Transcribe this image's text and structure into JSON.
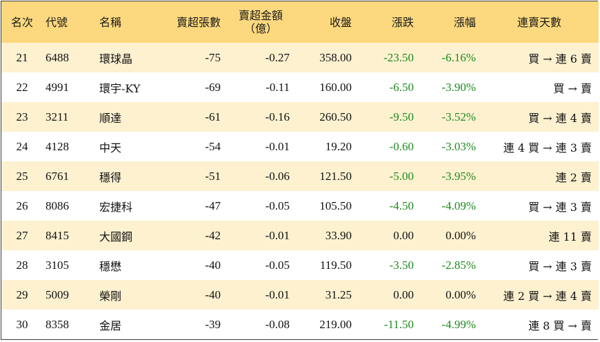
{
  "headers": {
    "rank": "名次",
    "code": "代號",
    "name": "名稱",
    "net_sell_lots": "賣超張數",
    "net_sell_amount_line1": "賣超金額",
    "net_sell_amount_line2": "（億）",
    "close": "收盤",
    "change": "漲跌",
    "change_pct": "漲幅",
    "streak": "連賣天數"
  },
  "rows": [
    {
      "rank": "21",
      "code": "6488",
      "name": "環球晶",
      "lots": "-75",
      "amount": "-0.27",
      "close": "358.00",
      "change": "-23.50",
      "pct": "-6.16%",
      "streak": "買 → 連 6 賣",
      "dir": "neg"
    },
    {
      "rank": "22",
      "code": "4991",
      "name": "環宇-KY",
      "lots": "-69",
      "amount": "-0.11",
      "close": "160.00",
      "change": "-6.50",
      "pct": "-3.90%",
      "streak": "買 → 賣",
      "dir": "neg"
    },
    {
      "rank": "23",
      "code": "3211",
      "name": "順達",
      "lots": "-61",
      "amount": "-0.16",
      "close": "260.50",
      "change": "-9.50",
      "pct": "-3.52%",
      "streak": "買 → 連 4 賣",
      "dir": "neg"
    },
    {
      "rank": "24",
      "code": "4128",
      "name": "中天",
      "lots": "-54",
      "amount": "-0.01",
      "close": "19.20",
      "change": "-0.60",
      "pct": "-3.03%",
      "streak": "連 4 買 → 連 3 賣",
      "dir": "neg"
    },
    {
      "rank": "25",
      "code": "6761",
      "name": "穩得",
      "lots": "-51",
      "amount": "-0.06",
      "close": "121.50",
      "change": "-5.00",
      "pct": "-3.95%",
      "streak": "連 2 賣",
      "dir": "neg"
    },
    {
      "rank": "26",
      "code": "8086",
      "name": "宏捷科",
      "lots": "-47",
      "amount": "-0.05",
      "close": "105.50",
      "change": "-4.50",
      "pct": "-4.09%",
      "streak": "買 → 連 3 賣",
      "dir": "neg"
    },
    {
      "rank": "27",
      "code": "8415",
      "name": "大國鋼",
      "lots": "-42",
      "amount": "-0.01",
      "close": "33.90",
      "change": "0.00",
      "pct": "0.00%",
      "streak": "連 11 賣",
      "dir": "zero"
    },
    {
      "rank": "28",
      "code": "3105",
      "name": "穩懋",
      "lots": "-40",
      "amount": "-0.05",
      "close": "119.50",
      "change": "-3.50",
      "pct": "-2.85%",
      "streak": "買 → 連 3 賣",
      "dir": "neg"
    },
    {
      "rank": "29",
      "code": "5009",
      "name": "榮剛",
      "lots": "-40",
      "amount": "-0.01",
      "close": "31.25",
      "change": "0.00",
      "pct": "0.00%",
      "streak": "連 2 買 → 連 4 賣",
      "dir": "zero"
    },
    {
      "rank": "30",
      "code": "8358",
      "name": "金居",
      "lots": "-39",
      "amount": "-0.08",
      "close": "219.00",
      "change": "-11.50",
      "pct": "-4.99%",
      "streak": "連 8 買 → 賣",
      "dir": "neg"
    }
  ],
  "colors": {
    "header_bg": "#fcd97e",
    "odd_row_bg": "#fdf1d0",
    "even_row_bg": "#ffffff",
    "negative": "#1e8a1e",
    "neutral": "#111111"
  }
}
